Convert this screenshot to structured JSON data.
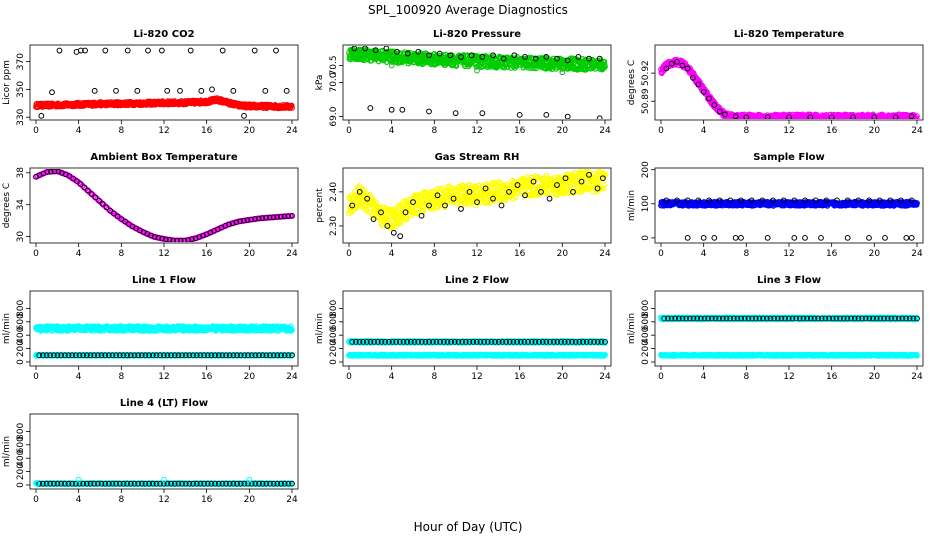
{
  "page": {
    "title": "SPL_100920  Average Diagnostics",
    "xlabel": "Hour of Day (UTC)"
  },
  "chart_data": [
    {
      "type": "scatter",
      "title": "Li-820 CO2",
      "ylabel": "Licor ppm",
      "xlim": [
        0,
        24
      ],
      "xticks": [
        0,
        4,
        8,
        12,
        16,
        20,
        24
      ],
      "ylim": [
        328,
        382
      ],
      "yticks": [
        330,
        350,
        370
      ],
      "series": [
        {
          "color": "#ff0000",
          "values_kind": "dense",
          "x": [
            0,
            2,
            4,
            6,
            8,
            10,
            12,
            14,
            16,
            17,
            18,
            19,
            20,
            22,
            24
          ],
          "y": [
            338.5,
            338.8,
            339.2,
            339.6,
            339.8,
            340.0,
            340.3,
            340.5,
            341.2,
            342.5,
            340.5,
            338.5,
            338.0,
            337.8,
            337.6
          ],
          "band": 2.2
        },
        {
          "color": "#000000",
          "values_kind": "open-circles",
          "x": [
            0.5,
            1.5,
            2.2,
            3.8,
            4.2,
            4.6,
            5.5,
            6.5,
            7.5,
            8.6,
            9.5,
            10.5,
            11.8,
            12.3,
            13.5,
            14.5,
            15.5,
            16.5,
            17.5,
            18.5,
            19.5,
            20.5,
            21.5,
            22.5,
            23.5
          ],
          "y": [
            331,
            348,
            378,
            377,
            378,
            378,
            349,
            378,
            349,
            378,
            349,
            378,
            378,
            349,
            349,
            378,
            349,
            350,
            378,
            349,
            331,
            378,
            349,
            378,
            349
          ]
        }
      ]
    },
    {
      "type": "scatter",
      "title": "Li-820 Pressure",
      "ylabel": "kPa",
      "xlim": [
        0,
        24
      ],
      "xticks": [
        0,
        4,
        8,
        12,
        16,
        20,
        24
      ],
      "ylim": [
        68.9,
        71.1
      ],
      "yticks": [
        69.0,
        70.0,
        70.5
      ],
      "ytick_labels": [
        "69.0",
        "70.0",
        "70.5"
      ],
      "series": [
        {
          "color": "#00cc00",
          "values_kind": "dense",
          "x": [
            0,
            4,
            8,
            12,
            16,
            20,
            24
          ],
          "y": [
            70.85,
            70.75,
            70.68,
            70.62,
            70.58,
            70.55,
            70.52
          ],
          "band": 0.28
        },
        {
          "color": "#000000",
          "values_kind": "open-circles",
          "x": [
            0.5,
            1.5,
            2.5,
            3.5,
            4.5,
            5.5,
            6.5,
            7.5,
            8.5,
            9.5,
            10.5,
            11.5,
            12.5,
            13.5,
            14.5,
            15.5,
            16.5,
            17.5,
            18.5,
            19.5,
            20.5,
            21.5,
            22.5,
            23.5,
            2.0,
            4.0,
            5.0,
            7.5,
            10.0,
            12.5,
            16.0,
            18.5,
            20.5,
            23.5
          ],
          "y": [
            71.0,
            71.0,
            70.95,
            71.0,
            70.9,
            70.85,
            70.9,
            70.8,
            70.85,
            70.8,
            70.75,
            70.8,
            70.75,
            70.8,
            70.7,
            70.8,
            70.75,
            70.7,
            70.75,
            70.7,
            70.65,
            70.75,
            70.7,
            70.7,
            69.25,
            69.2,
            69.2,
            69.15,
            69.1,
            69.1,
            69.05,
            69.05,
            69.0,
            68.95
          ]
        },
        {
          "color": "#22aa22",
          "values_kind": "outliers",
          "x": [
            4.0,
            12.0,
            20.0
          ],
          "y": [
            70.5,
            70.35,
            70.3
          ]
        }
      ]
    },
    {
      "type": "scatter",
      "title": "Li-820 Temperature",
      "ylabel": "degrees C",
      "xlim": [
        0,
        24
      ],
      "xticks": [
        0,
        4,
        8,
        12,
        16,
        20,
        24
      ],
      "ylim": [
        50.87,
        50.95
      ],
      "yticks": [
        50.89,
        50.92
      ],
      "ytick_labels": [
        "50.89",
        "50.92"
      ],
      "series": [
        {
          "color": "#ff00ff",
          "values_kind": "dense",
          "x": [
            0,
            0.5,
            1,
            1.5,
            2,
            2.5,
            3,
            3.5,
            4,
            4.5,
            5,
            5.5,
            6,
            6.5,
            7,
            8,
            12,
            16,
            20,
            24
          ],
          "y": [
            50.922,
            50.928,
            50.931,
            50.932,
            50.93,
            50.926,
            50.918,
            50.91,
            50.902,
            50.894,
            50.886,
            50.88,
            50.876,
            50.874,
            50.873,
            50.873,
            50.873,
            50.873,
            50.873,
            50.873
          ],
          "band": 0.005
        },
        {
          "color": "#000000",
          "values_kind": "open-circles",
          "x": [
            0.5,
            1.0,
            1.5,
            2.0,
            2.5,
            3.0,
            3.5,
            4.0,
            4.5,
            5.0,
            5.5,
            6.0,
            7.0,
            8.0,
            10.0,
            12.0,
            14.0,
            16.0,
            18.0,
            20.0,
            22.0,
            23.5
          ],
          "y": [
            50.925,
            50.93,
            50.932,
            50.928,
            50.925,
            50.915,
            50.908,
            50.9,
            50.893,
            50.886,
            50.879,
            50.876,
            50.874,
            50.873,
            50.873,
            50.873,
            50.873,
            50.873,
            50.873,
            50.873,
            50.873,
            50.874
          ]
        }
      ]
    },
    {
      "type": "line",
      "title": "Ambient Box Temperature",
      "ylabel": "degrees C",
      "xlim": [
        0,
        24
      ],
      "xticks": [
        0,
        4,
        8,
        12,
        16,
        20,
        24
      ],
      "ylim": [
        29.2,
        38.6
      ],
      "yticks": [
        30,
        34,
        38
      ],
      "series": [
        {
          "color": "#ff00ff",
          "values_kind": "curve",
          "x": [
            0,
            1,
            2,
            3,
            4,
            5,
            6,
            7,
            8,
            9,
            10,
            11,
            12,
            13,
            14,
            15,
            16,
            17,
            18,
            19,
            20,
            21,
            22,
            23,
            24
          ],
          "y": [
            37.5,
            38.1,
            38.2,
            37.7,
            36.8,
            35.6,
            34.4,
            33.2,
            32.2,
            31.3,
            30.6,
            30.0,
            29.7,
            29.5,
            29.5,
            29.8,
            30.3,
            30.9,
            31.5,
            31.9,
            32.1,
            32.3,
            32.4,
            32.5,
            32.6
          ]
        }
      ]
    },
    {
      "type": "scatter",
      "title": "Gas Stream RH",
      "ylabel": "percent",
      "xlim": [
        0,
        24
      ],
      "xticks": [
        0,
        4,
        8,
        12,
        16,
        20,
        24
      ],
      "ylim": [
        2.25,
        2.47
      ],
      "yticks": [
        2.3,
        2.4
      ],
      "ytick_labels": [
        "2.30",
        "2.40"
      ],
      "series": [
        {
          "color": "#ffff00",
          "values_kind": "dense",
          "x": [
            0,
            1,
            2,
            3,
            4,
            5,
            6,
            7,
            8,
            10,
            12,
            14,
            16,
            18,
            20,
            22,
            24
          ],
          "y": [
            2.36,
            2.39,
            2.36,
            2.33,
            2.32,
            2.34,
            2.36,
            2.37,
            2.38,
            2.39,
            2.39,
            2.4,
            2.41,
            2.42,
            2.42,
            2.43,
            2.43
          ],
          "band": 0.05
        },
        {
          "color": "#000000",
          "values_kind": "open-circles",
          "x": [
            0.3,
            1.0,
            1.7,
            2.3,
            3.0,
            3.6,
            4.2,
            4.8,
            5.3,
            6.0,
            6.8,
            7.5,
            8.3,
            9.0,
            9.8,
            10.5,
            11.3,
            12.0,
            12.8,
            13.5,
            14.3,
            15.0,
            15.8,
            16.5,
            17.3,
            18.0,
            18.8,
            19.5,
            20.3,
            21.0,
            21.8,
            22.5,
            23.3,
            23.8
          ],
          "y": [
            2.36,
            2.4,
            2.38,
            2.32,
            2.34,
            2.3,
            2.28,
            2.27,
            2.34,
            2.37,
            2.33,
            2.36,
            2.39,
            2.36,
            2.38,
            2.35,
            2.4,
            2.37,
            2.41,
            2.38,
            2.36,
            2.4,
            2.42,
            2.39,
            2.43,
            2.4,
            2.38,
            2.42,
            2.44,
            2.4,
            2.43,
            2.45,
            2.41,
            2.44
          ]
        }
      ]
    },
    {
      "type": "scatter",
      "title": "Sample Flow",
      "ylabel": "ml/min",
      "xlim": [
        0,
        24
      ],
      "xticks": [
        0,
        4,
        8,
        12,
        16,
        20,
        24
      ],
      "ylim": [
        -15,
        205
      ],
      "yticks": [
        0,
        100,
        200
      ],
      "series": [
        {
          "color": "#0000ff",
          "values_kind": "dense",
          "x": [
            0,
            24
          ],
          "y": [
            100,
            100
          ],
          "band": 10
        },
        {
          "color": "#000000",
          "values_kind": "open-circles",
          "x": [
            0.5,
            1.5,
            2.5,
            3.5,
            4.5,
            5.5,
            6.5,
            7.5,
            8.5,
            9.5,
            10.5,
            11.5,
            12.5,
            13.5,
            14.5,
            15.5,
            16.5,
            17.5,
            18.5,
            19.5,
            20.5,
            21.5,
            22.5,
            23.5,
            2.5,
            4.0,
            5.0,
            7.0,
            7.5,
            10.0,
            12.5,
            13.5,
            15.0,
            17.5,
            19.5,
            21.0,
            23.0,
            23.5
          ],
          "y": [
            110,
            110,
            110,
            110,
            110,
            110,
            110,
            110,
            110,
            110,
            110,
            110,
            110,
            110,
            110,
            110,
            110,
            110,
            110,
            110,
            110,
            110,
            110,
            110,
            0,
            0,
            0,
            0,
            0,
            0,
            0,
            0,
            0,
            0,
            0,
            0,
            0,
            0
          ]
        }
      ]
    },
    {
      "type": "scatter",
      "title": "Line 1 Flow",
      "ylabel": "ml/min",
      "xlim": [
        0,
        24
      ],
      "xticks": [
        0,
        4,
        8,
        12,
        16,
        20,
        24
      ],
      "ylim": [
        -60,
        1060
      ],
      "yticks": [
        0,
        200,
        400,
        600,
        800
      ],
      "series": [
        {
          "color": "#00ffff",
          "values_kind": "dense",
          "x": [
            0,
            24
          ],
          "y": [
            500,
            500
          ],
          "band": 60
        },
        {
          "color": "#00ffff",
          "values_kind": "dense",
          "x": [
            0,
            24
          ],
          "y": [
            100,
            100
          ],
          "band": 15
        },
        {
          "color": "#000000",
          "values_kind": "open-circles-row",
          "x": [
            0.3,
            24
          ],
          "y": [
            100,
            100
          ]
        }
      ]
    },
    {
      "type": "scatter",
      "title": "Line 2 Flow",
      "ylabel": "ml/min",
      "xlim": [
        0,
        24
      ],
      "xticks": [
        0,
        4,
        8,
        12,
        16,
        20,
        24
      ],
      "ylim": [
        -60,
        1060
      ],
      "yticks": [
        0,
        200,
        400,
        600,
        800
      ],
      "series": [
        {
          "color": "#00ffff",
          "values_kind": "dense",
          "x": [
            0,
            24
          ],
          "y": [
            300,
            300
          ],
          "band": 25
        },
        {
          "color": "#00ffff",
          "values_kind": "dense",
          "x": [
            0,
            24
          ],
          "y": [
            100,
            100
          ],
          "band": 15
        },
        {
          "color": "#000000",
          "values_kind": "open-circles-row",
          "x": [
            0.3,
            24
          ],
          "y": [
            300,
            300
          ]
        }
      ]
    },
    {
      "type": "scatter",
      "title": "Line 3 Flow",
      "ylabel": "ml/min",
      "xlim": [
        0,
        24
      ],
      "xticks": [
        0,
        4,
        8,
        12,
        16,
        20,
        24
      ],
      "ylim": [
        -60,
        1060
      ],
      "yticks": [
        0,
        200,
        400,
        600,
        800
      ],
      "series": [
        {
          "color": "#00ffff",
          "values_kind": "dense",
          "x": [
            0,
            24
          ],
          "y": [
            650,
            650
          ],
          "band": 25
        },
        {
          "color": "#00ffff",
          "values_kind": "dense",
          "x": [
            0,
            24
          ],
          "y": [
            100,
            100
          ],
          "band": 15
        },
        {
          "color": "#000000",
          "values_kind": "open-circles-row",
          "x": [
            0.3,
            24
          ],
          "y": [
            650,
            650
          ]
        }
      ]
    },
    {
      "type": "scatter",
      "title": "Line 4 (LT) Flow",
      "ylabel": "ml/min",
      "xlim": [
        0,
        24
      ],
      "xticks": [
        0,
        4,
        8,
        12,
        16,
        20,
        24
      ],
      "ylim": [
        -60,
        1060
      ],
      "yticks": [
        0,
        200,
        400,
        600,
        800
      ],
      "series": [
        {
          "color": "#00ffff",
          "values_kind": "dense",
          "x": [
            0,
            24
          ],
          "y": [
            20,
            20
          ],
          "band": 15
        },
        {
          "color": "#000000",
          "values_kind": "open-circles-row",
          "x": [
            0.3,
            24
          ],
          "y": [
            20,
            20
          ]
        },
        {
          "color": "#00ffff",
          "values_kind": "outliers",
          "x": [
            0.1,
            4.0,
            12.0,
            20.0
          ],
          "y": [
            20,
            80,
            80,
            80
          ]
        }
      ]
    }
  ]
}
